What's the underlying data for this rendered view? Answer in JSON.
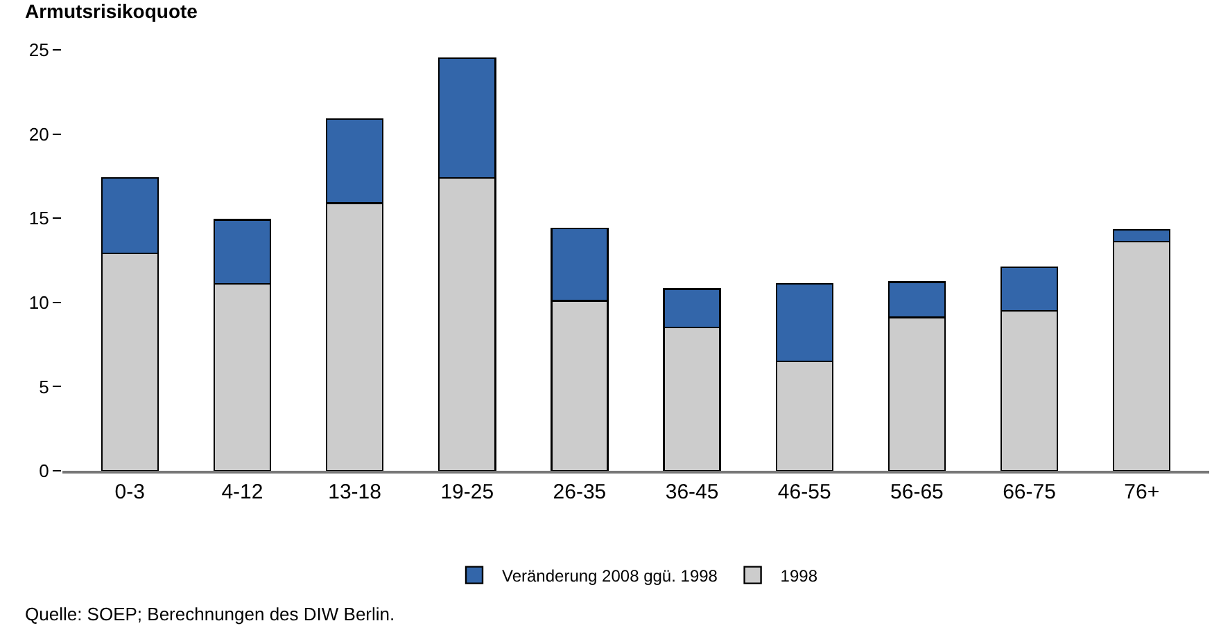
{
  "chart_data": {
    "type": "bar",
    "ylabel": "Armutsrisikoquote",
    "categories": [
      "0-3",
      "4-12",
      "13-18",
      "19-25",
      "26-35",
      "36-45",
      "46-55",
      "56-65",
      "66-75",
      "76+"
    ],
    "stacked": true,
    "series": [
      {
        "name": "1998",
        "color": "#cccccc",
        "values": [
          12.9,
          11.1,
          15.9,
          17.4,
          10.1,
          8.5,
          6.5,
          9.1,
          9.5,
          13.6
        ]
      },
      {
        "name": "Veränderung 2008 ggü. 1998",
        "color": "#3366aa",
        "values": [
          4.5,
          3.8,
          5.0,
          7.1,
          4.3,
          2.3,
          4.6,
          2.1,
          2.6,
          0.7
        ]
      }
    ],
    "ylim": [
      0,
      25
    ],
    "yticks": [
      0,
      5,
      10,
      15,
      20,
      25
    ],
    "grid": false,
    "legend": "bottom",
    "annotations": [
      "Quelle: SOEP; Berechnungen des DIW Berlin."
    ]
  }
}
